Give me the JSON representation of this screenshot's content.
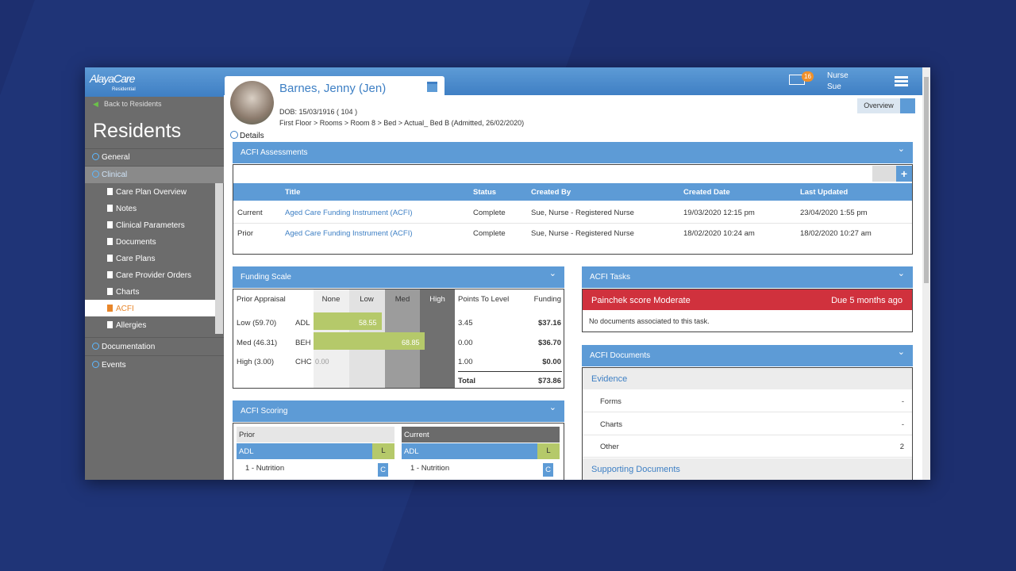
{
  "logo": {
    "name": "AlayaCare",
    "sub": "Residential"
  },
  "sidebar": {
    "back": "Back to Residents",
    "title": "Residents",
    "sections_before": [
      "General",
      "Clinical"
    ],
    "clinical_items": [
      "Care Plan Overview",
      "Notes",
      "Clinical Parameters",
      "Documents",
      "Care Plans",
      "Care Provider Orders",
      "Charts",
      "ACFI",
      "Allergies"
    ],
    "sections_after": [
      "Documentation",
      "Events"
    ]
  },
  "header": {
    "name": "Barnes, Jenny (Jen)",
    "dob": "DOB: 15/03/1916 ( 104 )",
    "location": "First Floor > Rooms > Room 8 > Bed > Actual_ Bed B (Admitted, 26/02/2020)",
    "details": "Details",
    "overview": "Overview",
    "mail_count": "16",
    "user": [
      "Nurse",
      "Sue"
    ]
  },
  "assessments": {
    "title": "ACFI Assessments",
    "columns": [
      "Title",
      "Status",
      "Created By",
      "Created Date",
      "Last Updated"
    ],
    "rows": [
      [
        "Current",
        "Aged Care Funding Instrument (ACFI)",
        "Complete",
        "Sue, Nurse - Registered Nurse",
        "19/03/2020 12:15 pm",
        "23/04/2020 1:55 pm"
      ],
      [
        "Prior",
        "Aged Care Funding Instrument (ACFI)",
        "Complete",
        "Sue, Nurse - Registered Nurse",
        "18/02/2020 10:24 am",
        "18/02/2020 10:27 am"
      ]
    ]
  },
  "funding": {
    "title": "Funding Scale",
    "columns": [
      "Prior Appraisal",
      "None",
      "Low",
      "Med",
      "High",
      "Points To Level",
      "Funding"
    ],
    "rows": [
      {
        "appraisal": "Low (59.70)",
        "domain": "ADL",
        "score": "58.55",
        "points": "3.45",
        "funding": "$37.16"
      },
      {
        "appraisal": "Med (46.31)",
        "domain": "BEH",
        "score": "68.85",
        "points": "0.00",
        "funding": "$36.70"
      },
      {
        "appraisal": "High (3.00)",
        "domain": "CHC",
        "score": "0.00",
        "points": "1.00",
        "funding": "$0.00"
      }
    ],
    "total_label": "Total",
    "total": "$73.86"
  },
  "tasks": {
    "title": "ACFI Tasks",
    "task": "Painchek score Moderate",
    "due": "Due 5 months ago",
    "empty": "No documents associated to this task."
  },
  "documents": {
    "title": "ACFI Documents",
    "groups": [
      {
        "name": "Evidence",
        "items": [
          {
            "name": "Forms",
            "count": "-"
          },
          {
            "name": "Charts",
            "count": "-"
          },
          {
            "name": "Other",
            "count": "2"
          }
        ]
      },
      {
        "name": "Supporting Documents"
      }
    ]
  },
  "scoring": {
    "title": "ACFI Scoring",
    "prior": {
      "label": "Prior",
      "domain": "ADL",
      "level": "L",
      "item": "1 - Nutrition",
      "rating": "C"
    },
    "current": {
      "label": "Current",
      "domain": "ADL",
      "level": "L",
      "item": "1 - Nutrition",
      "rating": "C"
    }
  }
}
